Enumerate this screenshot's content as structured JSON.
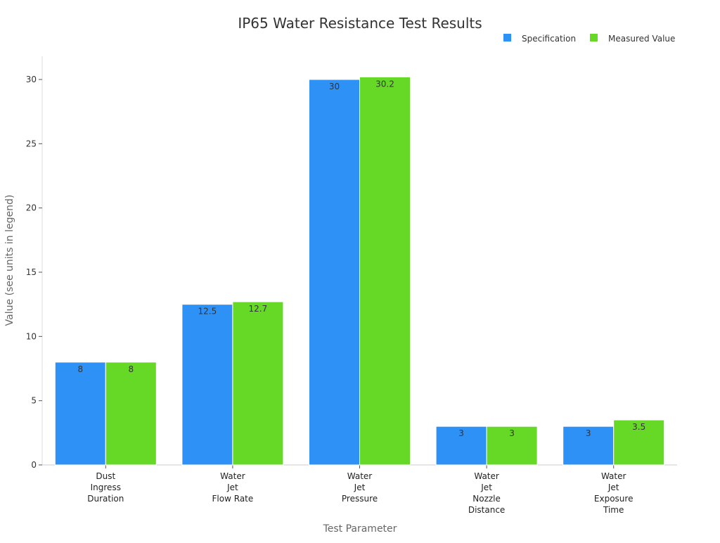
{
  "chart_data": {
    "type": "bar",
    "title": "IP65 Water Resistance Test Results",
    "xlabel": "Test Parameter",
    "ylabel": "Value (see units in legend)",
    "ylim": [
      0,
      31.8
    ],
    "yticks": [
      0,
      5,
      10,
      15,
      20,
      25,
      30
    ],
    "grid": false,
    "legend_position": "top-right",
    "categories": [
      [
        "Dust",
        "Ingress",
        "Duration"
      ],
      [
        "Water",
        "Jet",
        "Flow Rate"
      ],
      [
        "Water",
        "Jet",
        "Pressure"
      ],
      [
        "Water",
        "Jet",
        "Nozzle",
        "Distance"
      ],
      [
        "Water",
        "Jet",
        "Exposure",
        "Time"
      ]
    ],
    "series": [
      {
        "name": "Specification",
        "color": "#2e91f5",
        "values": [
          8,
          12.5,
          30,
          3,
          3
        ],
        "labels": [
          "8",
          "12.5",
          "30",
          "3",
          "3"
        ]
      },
      {
        "name": "Measured Value",
        "color": "#66d926",
        "values": [
          8,
          12.7,
          30.2,
          3,
          3.5
        ],
        "labels": [
          "8",
          "12.7",
          "30.2",
          "3",
          "3.5"
        ]
      }
    ]
  }
}
